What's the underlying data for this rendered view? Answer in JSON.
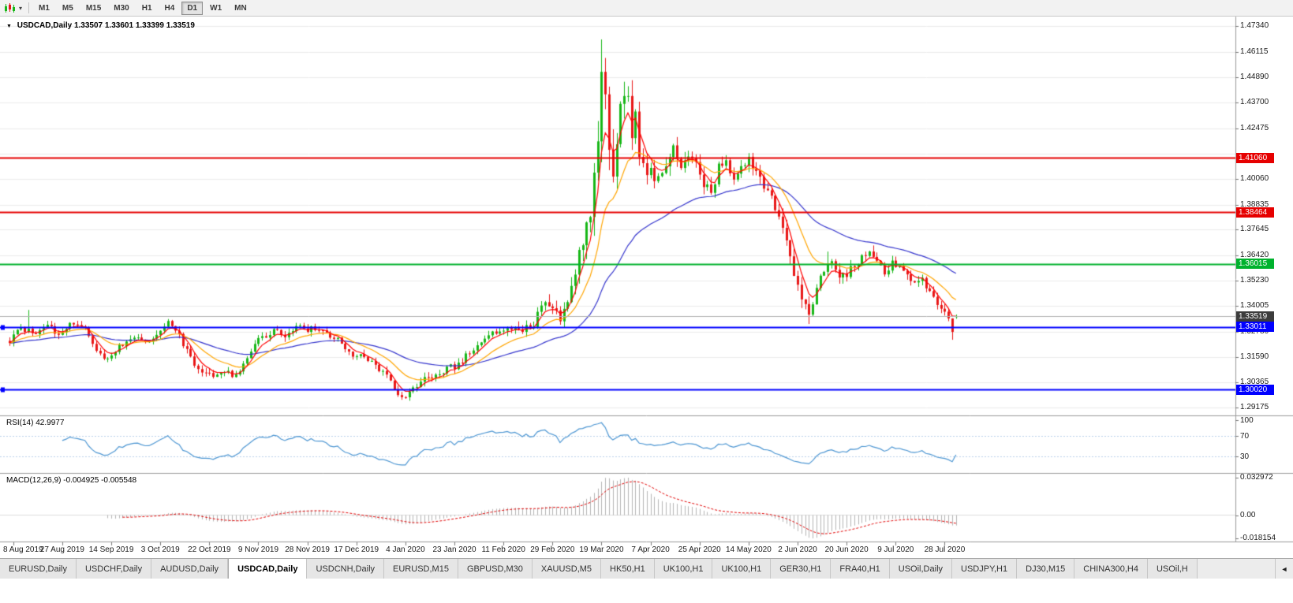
{
  "toolbar": {
    "chart_type_icon": "candlestick-chart-icon",
    "chart_type_caret": "▾",
    "timeframes": [
      "M1",
      "M5",
      "M15",
      "M30",
      "H1",
      "H4",
      "D1",
      "W1",
      "MN"
    ],
    "active_timeframe": "D1"
  },
  "chart": {
    "marker": "▼",
    "symbol": "USDCAD,Daily",
    "open": "1.33507",
    "high": "1.33601",
    "low": "1.33399",
    "close": "1.33519"
  },
  "price_axis": {
    "labels": [
      "1.47340",
      "1.46115",
      "1.44890",
      "1.43700",
      "1.42475",
      "1.41250",
      "1.40060",
      "1.38835",
      "1.37645",
      "1.36420",
      "1.35230",
      "1.34005",
      "1.32780",
      "1.31590",
      "1.30365",
      "1.29175"
    ],
    "hidden_labels": [
      "1.41250"
    ],
    "current_price": "1.33519"
  },
  "hlines": [
    {
      "value": 1.4106,
      "label": "1.41060",
      "color": "#e60000",
      "width": 2,
      "handle": false
    },
    {
      "value": 1.38464,
      "label": "1.38464",
      "color": "#e60000",
      "width": 2,
      "handle": false
    },
    {
      "value": 1.36015,
      "label": "1.36015",
      "color": "#00b22d",
      "width": 2,
      "handle": false
    },
    {
      "value": 1.33011,
      "label": "1.33011",
      "color": "#0000ff",
      "width": 2,
      "handle": true
    },
    {
      "value": 1.3002,
      "label": "1.30020",
      "color": "#0000ff",
      "width": 2,
      "handle": true
    }
  ],
  "rsi_pane": {
    "label": "RSI(14) 42.9977",
    "levels": [
      {
        "value": 100,
        "label": "100",
        "line": false
      },
      {
        "value": 70,
        "label": "70",
        "line": true
      },
      {
        "value": 30,
        "label": "30",
        "line": true
      }
    ],
    "line_color": "#4d96d2",
    "level_color": "#b9d1ea"
  },
  "macd_pane": {
    "label": "MACD(12,26,9) -0.004925 -0.005548",
    "axis_top": "0.032972",
    "axis_zero": "0.00",
    "axis_bottom": "-0.018154",
    "histogram_color": "#b4b4b4",
    "signal_color": "#e00000"
  },
  "date_axis": {
    "labels": [
      "8 Aug 2019",
      "27 Aug 2019",
      "14 Sep 2019",
      "3 Oct 2019",
      "22 Oct 2019",
      "9 Nov 2019",
      "28 Nov 2019",
      "17 Dec 2019",
      "4 Jan 2020",
      "23 Jan 2020",
      "11 Feb 2020",
      "29 Feb 2020",
      "19 Mar 2020",
      "7 Apr 2020",
      "25 Apr 2020",
      "14 May 2020",
      "2 Jun 2020",
      "20 Jun 2020",
      "9 Jul 2020",
      "28 Jul 2020"
    ]
  },
  "tabs": {
    "items": [
      {
        "label": "EURUSD,Daily",
        "active": false
      },
      {
        "label": "USDCHF,Daily",
        "active": false
      },
      {
        "label": "AUDUSD,Daily",
        "active": false
      },
      {
        "label": "USDCAD,Daily",
        "active": true
      },
      {
        "label": "USDCNH,Daily",
        "active": false
      },
      {
        "label": "EURUSD,M15",
        "active": false
      },
      {
        "label": "GBPUSD,M30",
        "active": false
      },
      {
        "label": "XAUUSD,M5",
        "active": false
      },
      {
        "label": "HK50,H1",
        "active": false
      },
      {
        "label": "UK100,H1",
        "active": false
      },
      {
        "label": "UK100,H1",
        "active": false
      },
      {
        "label": "GER30,H1",
        "active": false
      },
      {
        "label": "FRA40,H1",
        "active": false
      },
      {
        "label": "USOil,Daily",
        "active": false
      },
      {
        "label": "USDJPY,H1",
        "active": false
      },
      {
        "label": "DJ30,M15",
        "active": false
      },
      {
        "label": "CHINA300,H4",
        "active": false
      },
      {
        "label": "USOil,H",
        "active": false
      }
    ],
    "scroll_left_icon": "◄"
  },
  "chart_data": {
    "type": "candlestick",
    "symbol": "USDCAD",
    "timeframe": "D1",
    "visible_range": {
      "from": "8 Aug 2019",
      "to": "10 Aug 2020"
    },
    "candle_count": 252,
    "first_tick_index": 1,
    "tick_step": 13,
    "up_color": "#18b718",
    "down_color": "#e81717",
    "close_path_anchors": [
      [
        0,
        1.3235
      ],
      [
        3,
        1.33
      ],
      [
        6,
        1.327
      ],
      [
        10,
        1.3305
      ],
      [
        13,
        1.327
      ],
      [
        16,
        1.331
      ],
      [
        20,
        1.329
      ],
      [
        23,
        1.3195
      ],
      [
        26,
        1.3145
      ],
      [
        29,
        1.3205
      ],
      [
        33,
        1.3255
      ],
      [
        37,
        1.324
      ],
      [
        40,
        1.3295
      ],
      [
        42,
        1.3325
      ],
      [
        45,
        1.326
      ],
      [
        48,
        1.315
      ],
      [
        51,
        1.3085
      ],
      [
        54,
        1.306
      ],
      [
        57,
        1.309
      ],
      [
        60,
        1.3065
      ],
      [
        63,
        1.315
      ],
      [
        66,
        1.324
      ],
      [
        70,
        1.3285
      ],
      [
        73,
        1.3255
      ],
      [
        76,
        1.33
      ],
      [
        79,
        1.329
      ],
      [
        82,
        1.33
      ],
      [
        85,
        1.326
      ],
      [
        88,
        1.323
      ],
      [
        91,
        1.317
      ],
      [
        94,
        1.316
      ],
      [
        97,
        1.312
      ],
      [
        100,
        1.306
      ],
      [
        103,
        1.298
      ],
      [
        105,
        1.2965
      ],
      [
        107,
        1.3
      ],
      [
        110,
        1.305
      ],
      [
        113,
        1.308
      ],
      [
        116,
        1.31
      ],
      [
        118,
        1.3115
      ],
      [
        121,
        1.316
      ],
      [
        124,
        1.32
      ],
      [
        127,
        1.3255
      ],
      [
        130,
        1.3285
      ],
      [
        133,
        1.33
      ],
      [
        136,
        1.3275
      ],
      [
        139,
        1.332
      ],
      [
        142,
        1.344
      ],
      [
        144,
        1.3395
      ],
      [
        146,
        1.334
      ],
      [
        148,
        1.339
      ],
      [
        150,
        1.356
      ],
      [
        152,
        1.372
      ],
      [
        154,
        1.387
      ],
      [
        155,
        1.399
      ],
      [
        156,
        1.425
      ],
      [
        157,
        1.456
      ],
      [
        158,
        1.448
      ],
      [
        159,
        1.415
      ],
      [
        160,
        1.407
      ],
      [
        161,
        1.423
      ],
      [
        163,
        1.442
      ],
      [
        164,
        1.437
      ],
      [
        165,
        1.424
      ],
      [
        166,
        1.43
      ],
      [
        167,
        1.415
      ],
      [
        168,
        1.408
      ],
      [
        170,
        1.403
      ],
      [
        172,
        1.399
      ],
      [
        174,
        1.407
      ],
      [
        176,
        1.416
      ],
      [
        178,
        1.406
      ],
      [
        180,
        1.41
      ],
      [
        182,
        1.409
      ],
      [
        184,
        1.399
      ],
      [
        186,
        1.394
      ],
      [
        188,
        1.406
      ],
      [
        190,
        1.409
      ],
      [
        192,
        1.401
      ],
      [
        194,
        1.406
      ],
      [
        196,
        1.411
      ],
      [
        198,
        1.403
      ],
      [
        200,
        1.396
      ],
      [
        202,
        1.392
      ],
      [
        204,
        1.384
      ],
      [
        206,
        1.37
      ],
      [
        208,
        1.356
      ],
      [
        210,
        1.344
      ],
      [
        212,
        1.3375
      ],
      [
        214,
        1.347
      ],
      [
        216,
        1.358
      ],
      [
        218,
        1.363
      ],
      [
        220,
        1.355
      ],
      [
        222,
        1.3555
      ],
      [
        224,
        1.359
      ],
      [
        226,
        1.363
      ],
      [
        228,
        1.3655
      ],
      [
        230,
        1.36
      ],
      [
        232,
        1.356
      ],
      [
        234,
        1.36
      ],
      [
        236,
        1.358
      ],
      [
        238,
        1.3545
      ],
      [
        240,
        1.351
      ],
      [
        242,
        1.353
      ],
      [
        244,
        1.347
      ],
      [
        246,
        1.342
      ],
      [
        248,
        1.338
      ],
      [
        249,
        1.333
      ],
      [
        250,
        1.329
      ],
      [
        251,
        1.33519
      ]
    ],
    "volatility_anchors": [
      [
        0,
        0.0055
      ],
      [
        100,
        0.006
      ],
      [
        130,
        0.0065
      ],
      [
        140,
        0.009
      ],
      [
        148,
        0.014
      ],
      [
        153,
        0.022
      ],
      [
        157,
        0.03
      ],
      [
        160,
        0.026
      ],
      [
        165,
        0.02
      ],
      [
        170,
        0.015
      ],
      [
        180,
        0.011
      ],
      [
        195,
        0.0085
      ],
      [
        205,
        0.011
      ],
      [
        212,
        0.011
      ],
      [
        220,
        0.0085
      ],
      [
        235,
        0.007
      ],
      [
        251,
        0.0065
      ]
    ],
    "overrides": {
      "5": {
        "h": 1.3382
      },
      "157": {
        "h": 1.467
      },
      "212": {
        "l": 1.3315
      },
      "217": {
        "h": 1.366
      },
      "250": {
        "l": 1.324
      },
      "251": {
        "o": 1.33507,
        "h": 1.33601,
        "l": 1.33399,
        "c": 1.33519
      }
    },
    "moving_averages": [
      {
        "type": "ema",
        "period": 45,
        "color": "#3333cc"
      },
      {
        "type": "ema",
        "period": 15,
        "color": "#ffa500"
      },
      {
        "type": "ema",
        "period": 5,
        "color": "#ff0000"
      }
    ],
    "indicators": [
      {
        "name": "RSI",
        "params": [
          14
        ],
        "last_value": 42.9977
      },
      {
        "name": "MACD",
        "params": [
          12,
          26,
          9
        ],
        "last_values": [
          -0.004925,
          -0.005548
        ]
      }
    ]
  }
}
